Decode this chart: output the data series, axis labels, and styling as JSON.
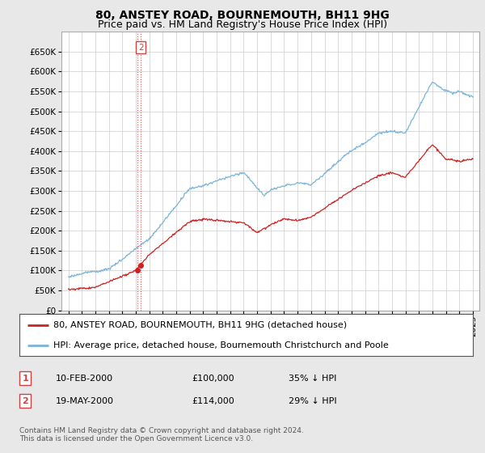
{
  "title": "80, ANSTEY ROAD, BOURNEMOUTH, BH11 9HG",
  "subtitle": "Price paid vs. HM Land Registry's House Price Index (HPI)",
  "legend_line1": "80, ANSTEY ROAD, BOURNEMOUTH, BH11 9HG (detached house)",
  "legend_line2": "HPI: Average price, detached house, Bournemouth Christchurch and Poole",
  "table_rows": [
    {
      "num": "1",
      "date": "10-FEB-2000",
      "price": "£100,000",
      "hpi": "35% ↓ HPI"
    },
    {
      "num": "2",
      "date": "19-MAY-2000",
      "price": "£114,000",
      "hpi": "29% ↓ HPI"
    }
  ],
  "footnote": "Contains HM Land Registry data © Crown copyright and database right 2024.\nThis data is licensed under the Open Government Licence v3.0.",
  "hpi_color": "#7ab4d8",
  "price_color": "#cc2222",
  "dashed_line_color": "#cc4444",
  "ylim": [
    0,
    700000
  ],
  "yticks": [
    0,
    50000,
    100000,
    150000,
    200000,
    250000,
    300000,
    350000,
    400000,
    450000,
    500000,
    550000,
    600000,
    650000
  ],
  "background_color": "#e8e8e8",
  "plot_bg_color": "#ffffff",
  "grid_color": "#cccccc",
  "title_fontsize": 10,
  "subtitle_fontsize": 9,
  "axis_fontsize": 7.5,
  "legend_fontsize": 8,
  "table_fontsize": 8,
  "footnote_fontsize": 6.5,
  "sale1_year": 2000.11,
  "sale1_price": 100000,
  "sale2_year": 2000.38,
  "sale2_price": 114000
}
